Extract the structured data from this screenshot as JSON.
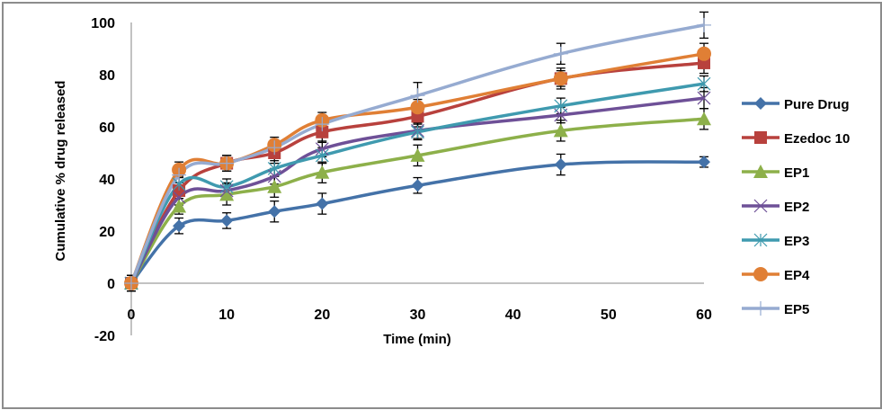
{
  "chart_data": {
    "type": "line",
    "title": "",
    "xlabel": "Time (min)",
    "ylabel": "Cumulative % drug released",
    "xlim": [
      0,
      60
    ],
    "ylim": [
      -20,
      100
    ],
    "x_ticks": [
      0,
      10,
      20,
      30,
      40,
      50,
      60
    ],
    "y_ticks": [
      -20,
      0,
      20,
      40,
      60,
      80,
      100
    ],
    "grid": false,
    "legend_position": "right",
    "x": [
      0,
      5,
      10,
      15,
      20,
      30,
      45,
      60
    ],
    "series": [
      {
        "name": "Pure Drug",
        "color": "#4472a8",
        "marker": "diamond",
        "values": [
          0,
          22,
          24,
          27.5,
          30.5,
          37.5,
          45.5,
          46.5
        ],
        "errors": [
          3,
          3,
          3,
          4,
          4,
          3,
          4,
          2
        ]
      },
      {
        "name": "Ezedoc 10",
        "color": "#b8413d",
        "marker": "square",
        "values": [
          0,
          35.5,
          46,
          50,
          58,
          64,
          78.5,
          84.5
        ],
        "errors": [
          3,
          3,
          3,
          4,
          4,
          4,
          4,
          4
        ]
      },
      {
        "name": "EP1",
        "color": "#8db04a",
        "marker": "triangle",
        "values": [
          0,
          29.5,
          34,
          37,
          42.5,
          49,
          58.5,
          63
        ],
        "errors": [
          3,
          3,
          4,
          4,
          4,
          4,
          4,
          4
        ]
      },
      {
        "name": "EP2",
        "color": "#6e5097",
        "marker": "x",
        "values": [
          0,
          33,
          35.5,
          41,
          51.5,
          58.5,
          64.5,
          71
        ],
        "errors": [
          3,
          3,
          3,
          3,
          3,
          3,
          3,
          4
        ]
      },
      {
        "name": "EP3",
        "color": "#3f9aaf",
        "marker": "star",
        "values": [
          0,
          38,
          37,
          44,
          49,
          58,
          68,
          76.5
        ],
        "errors": [
          3,
          3,
          3,
          3,
          3,
          3,
          3,
          3
        ]
      },
      {
        "name": "EP4",
        "color": "#e07f35",
        "marker": "circle",
        "values": [
          0,
          43.5,
          46,
          53,
          62.5,
          67.5,
          78.5,
          88
        ],
        "errors": [
          3,
          3,
          3,
          3,
          3,
          3,
          3,
          4
        ]
      },
      {
        "name": "EP5",
        "color": "#96abd1",
        "marker": "plus",
        "values": [
          0,
          41.5,
          46,
          52,
          61,
          72,
          88,
          99
        ],
        "errors": [
          3,
          3,
          3,
          3,
          3,
          5,
          4,
          5
        ]
      }
    ]
  }
}
